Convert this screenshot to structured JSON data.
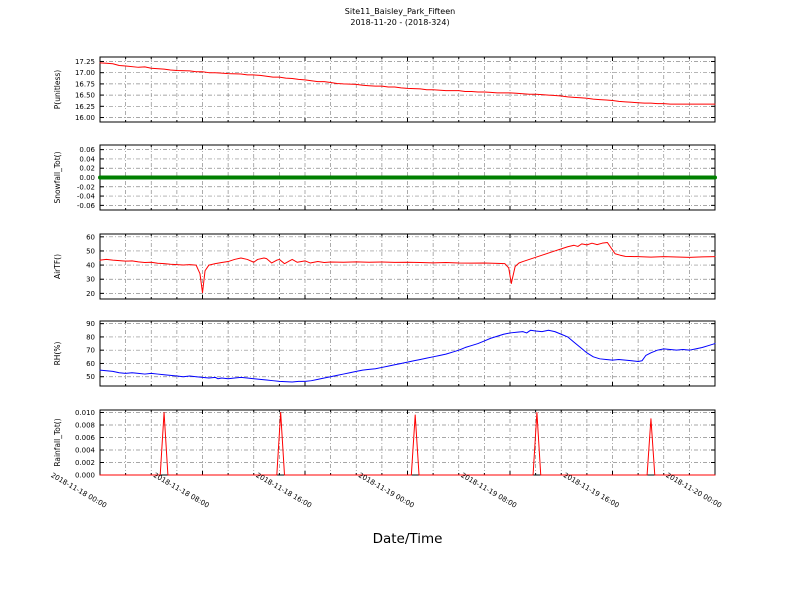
{
  "title": "Site11_Baisley_Park_Fifteen",
  "subtitle": "2018-11-20 - (2018-324)",
  "xlabel": "Date/Time",
  "background": "#ffffff",
  "grid": {
    "color": "#8a8a8a",
    "dash": "4 2 1 2",
    "width": 0.7
  },
  "x_axis": {
    "range_hours": [
      0,
      48
    ],
    "major_ticks_hours": [
      0,
      8,
      16,
      24,
      32,
      40,
      48
    ],
    "minor_step_hours": 2,
    "tick_labels": [
      "2018-11-18 00:00",
      "2018-11-18 08:00",
      "2018-11-18 16:00",
      "2018-11-19 00:00",
      "2018-11-19 08:00",
      "2018-11-19 16:00",
      "2018-11-20 00:00"
    ]
  },
  "chart_data": [
    {
      "id": "p-unitless",
      "type": "line",
      "ylabel": "P(unitless)",
      "color": "#ff0000",
      "linewidth": 1,
      "ylim": [
        15.9,
        17.35
      ],
      "yticks": [
        16.0,
        16.25,
        16.5,
        16.75,
        17.0,
        17.25
      ],
      "ytick_labels": [
        "16.00",
        "16.25",
        "16.50",
        "16.75",
        "17.00",
        "17.25"
      ],
      "points": [
        [
          0,
          17.22
        ],
        [
          0.5,
          17.21
        ],
        [
          1,
          17.2
        ],
        [
          1.5,
          17.16
        ],
        [
          2,
          17.15
        ],
        [
          3,
          17.12
        ],
        [
          3.5,
          17.13
        ],
        [
          4,
          17.1
        ],
        [
          5,
          17.08
        ],
        [
          5.5,
          17.06
        ],
        [
          6,
          17.05
        ],
        [
          7,
          17.04
        ],
        [
          7.5,
          17.02
        ],
        [
          8,
          17.02
        ],
        [
          8.5,
          17.0
        ],
        [
          9,
          17.0
        ],
        [
          9.5,
          16.99
        ],
        [
          10,
          16.98
        ],
        [
          11,
          16.97
        ],
        [
          11.5,
          16.95
        ],
        [
          12,
          16.95
        ],
        [
          12.5,
          16.94
        ],
        [
          13,
          16.92
        ],
        [
          13.5,
          16.9
        ],
        [
          14,
          16.9
        ],
        [
          14.5,
          16.88
        ],
        [
          15,
          16.87
        ],
        [
          15.5,
          16.85
        ],
        [
          16,
          16.84
        ],
        [
          16.5,
          16.82
        ],
        [
          17,
          16.8
        ],
        [
          17.5,
          16.8
        ],
        [
          18,
          16.78
        ],
        [
          18.5,
          16.76
        ],
        [
          19,
          16.75
        ],
        [
          20,
          16.74
        ],
        [
          20.5,
          16.72
        ],
        [
          21,
          16.71
        ],
        [
          21.5,
          16.7
        ],
        [
          22,
          16.7
        ],
        [
          22.5,
          16.68
        ],
        [
          23,
          16.68
        ],
        [
          23.5,
          16.66
        ],
        [
          24,
          16.65
        ],
        [
          25,
          16.64
        ],
        [
          25.5,
          16.62
        ],
        [
          26,
          16.62
        ],
        [
          27,
          16.6
        ],
        [
          28,
          16.6
        ],
        [
          28.5,
          16.58
        ],
        [
          29,
          16.58
        ],
        [
          29.5,
          16.57
        ],
        [
          30,
          16.57
        ],
        [
          30.5,
          16.56
        ],
        [
          31,
          16.55
        ],
        [
          32,
          16.55
        ],
        [
          32.5,
          16.54
        ],
        [
          33,
          16.53
        ],
        [
          33.5,
          16.52
        ],
        [
          34,
          16.52
        ],
        [
          34.5,
          16.51
        ],
        [
          35,
          16.5
        ],
        [
          35.5,
          16.49
        ],
        [
          36,
          16.48
        ],
        [
          36.5,
          16.46
        ],
        [
          37,
          16.45
        ],
        [
          37.5,
          16.44
        ],
        [
          38,
          16.43
        ],
        [
          38.5,
          16.41
        ],
        [
          39,
          16.4
        ],
        [
          39.5,
          16.39
        ],
        [
          40,
          16.38
        ],
        [
          40.5,
          16.36
        ],
        [
          41,
          16.35
        ],
        [
          41.5,
          16.34
        ],
        [
          42,
          16.33
        ],
        [
          42.5,
          16.32
        ],
        [
          43,
          16.32
        ],
        [
          43.5,
          16.31
        ],
        [
          44,
          16.31
        ],
        [
          44.5,
          16.3
        ],
        [
          45,
          16.3
        ],
        [
          46,
          16.3
        ],
        [
          47,
          16.3
        ],
        [
          48,
          16.3
        ]
      ]
    },
    {
      "id": "snowfall-tot",
      "type": "line",
      "ylabel": "Snowfall_Tot()",
      "color": "#008000",
      "linewidth": 4,
      "ylim": [
        -0.07,
        0.07
      ],
      "yticks": [
        -0.06,
        -0.04,
        -0.02,
        0.0,
        0.02,
        0.04,
        0.06
      ],
      "ytick_labels": [
        "-0.06",
        "-0.04",
        "-0.02",
        "0.00",
        "0.02",
        "0.04",
        "0.06"
      ],
      "points": [
        [
          0,
          0
        ],
        [
          48,
          0
        ]
      ]
    },
    {
      "id": "airtf",
      "type": "line",
      "ylabel": "AirTF()",
      "color": "#ff0000",
      "linewidth": 1,
      "ylim": [
        16,
        62
      ],
      "yticks": [
        20,
        30,
        40,
        50,
        60
      ],
      "ytick_labels": [
        "20",
        "30",
        "40",
        "50",
        "60"
      ],
      "points": [
        [
          0,
          43.5
        ],
        [
          0.5,
          44
        ],
        [
          1,
          43.5
        ],
        [
          1.5,
          43.2
        ],
        [
          2,
          42.8
        ],
        [
          2.5,
          43
        ],
        [
          3,
          42.3
        ],
        [
          3.5,
          41.8
        ],
        [
          4,
          42
        ],
        [
          4.5,
          41.3
        ],
        [
          5,
          41
        ],
        [
          5.5,
          40.6
        ],
        [
          6,
          40.3
        ],
        [
          6.5,
          40.1
        ],
        [
          7,
          40.3
        ],
        [
          7.5,
          40
        ],
        [
          7.8,
          34
        ],
        [
          8,
          20.5
        ],
        [
          8.2,
          36
        ],
        [
          8.5,
          40
        ],
        [
          9,
          41
        ],
        [
          9.5,
          41.8
        ],
        [
          10,
          42.5
        ],
        [
          10.5,
          44
        ],
        [
          11,
          45
        ],
        [
          11.5,
          44
        ],
        [
          12,
          42
        ],
        [
          12.3,
          44
        ],
        [
          12.8,
          45
        ],
        [
          13,
          44.6
        ],
        [
          13.4,
          41.5
        ],
        [
          13.8,
          43.5
        ],
        [
          14,
          44
        ],
        [
          14.4,
          41
        ],
        [
          14.8,
          43
        ],
        [
          15,
          44
        ],
        [
          15.4,
          42
        ],
        [
          16,
          43
        ],
        [
          16.4,
          41.5
        ],
        [
          17,
          42.5
        ],
        [
          17.5,
          41.8
        ],
        [
          18,
          42.2
        ],
        [
          19,
          42
        ],
        [
          20,
          42.3
        ],
        [
          21,
          42
        ],
        [
          22,
          42.2
        ],
        [
          23,
          41.9
        ],
        [
          24,
          42
        ],
        [
          25,
          41.8
        ],
        [
          26,
          41.6
        ],
        [
          27,
          41.8
        ],
        [
          28,
          41.5
        ],
        [
          29,
          41.4
        ],
        [
          30,
          41.5
        ],
        [
          31,
          41.2
        ],
        [
          31.6,
          41
        ],
        [
          31.9,
          38
        ],
        [
          32.1,
          27
        ],
        [
          32.4,
          39
        ],
        [
          32.7,
          41.5
        ],
        [
          33,
          42.5
        ],
        [
          33.5,
          44
        ],
        [
          34,
          45.5
        ],
        [
          34.5,
          47
        ],
        [
          35,
          48.5
        ],
        [
          35.5,
          50
        ],
        [
          36,
          51.5
        ],
        [
          36.5,
          53
        ],
        [
          37,
          54
        ],
        [
          37.3,
          53.2
        ],
        [
          37.6,
          55
        ],
        [
          38,
          54.3
        ],
        [
          38.4,
          55.5
        ],
        [
          38.8,
          54.5
        ],
        [
          39.2,
          55.5
        ],
        [
          39.6,
          56
        ],
        [
          39.9,
          52
        ],
        [
          40.2,
          48
        ],
        [
          40.6,
          47
        ],
        [
          41,
          46.2
        ],
        [
          42,
          46
        ],
        [
          43,
          45.6
        ],
        [
          44,
          46
        ],
        [
          45,
          45.7
        ],
        [
          46,
          45.5
        ],
        [
          47,
          45.8
        ],
        [
          48,
          46
        ]
      ]
    },
    {
      "id": "rh",
      "type": "line",
      "ylabel": "RH(%)",
      "color": "#0000ff",
      "linewidth": 1,
      "ylim": [
        43,
        92
      ],
      "yticks": [
        50,
        60,
        70,
        80,
        90
      ],
      "ytick_labels": [
        "50",
        "60",
        "70",
        "80",
        "90"
      ],
      "points": [
        [
          0,
          55
        ],
        [
          0.5,
          54.5
        ],
        [
          1,
          54
        ],
        [
          1.5,
          53
        ],
        [
          2,
          52.5
        ],
        [
          2.5,
          53
        ],
        [
          3,
          52.5
        ],
        [
          3.5,
          52
        ],
        [
          4,
          52.5
        ],
        [
          4.5,
          52
        ],
        [
          5,
          51.5
        ],
        [
          5.5,
          51
        ],
        [
          6,
          50.5
        ],
        [
          6.5,
          50
        ],
        [
          7,
          50.5
        ],
        [
          7.5,
          50
        ],
        [
          8,
          49.5
        ],
        [
          8.5,
          49
        ],
        [
          9,
          49.5
        ],
        [
          9.2,
          48.5
        ],
        [
          9.5,
          49
        ],
        [
          10,
          48.5
        ],
        [
          10.5,
          49
        ],
        [
          11,
          49.5
        ],
        [
          11.5,
          49
        ],
        [
          12,
          48.5
        ],
        [
          12.5,
          48
        ],
        [
          13,
          47.5
        ],
        [
          13.5,
          47
        ],
        [
          14,
          46.5
        ],
        [
          15,
          46
        ],
        [
          15.5,
          46.5
        ],
        [
          16,
          46.5
        ],
        [
          16.5,
          47
        ],
        [
          17,
          48
        ],
        [
          17.5,
          49
        ],
        [
          18,
          50
        ],
        [
          18.5,
          51
        ],
        [
          19,
          52
        ],
        [
          19.5,
          53
        ],
        [
          20,
          54
        ],
        [
          20.5,
          55
        ],
        [
          21,
          55.5
        ],
        [
          21.5,
          56
        ],
        [
          22,
          57
        ],
        [
          22.5,
          58
        ],
        [
          23,
          59
        ],
        [
          23.5,
          60
        ],
        [
          24,
          61
        ],
        [
          24.5,
          62
        ],
        [
          25,
          63
        ],
        [
          25.5,
          64
        ],
        [
          26,
          65
        ],
        [
          26.5,
          66
        ],
        [
          27,
          67
        ],
        [
          27.5,
          68.5
        ],
        [
          28,
          70
        ],
        [
          28.5,
          72
        ],
        [
          29,
          73.5
        ],
        [
          29.5,
          75
        ],
        [
          30,
          77
        ],
        [
          30.5,
          79
        ],
        [
          31,
          80.5
        ],
        [
          31.5,
          82
        ],
        [
          32,
          83
        ],
        [
          32.5,
          83.5
        ],
        [
          33,
          84
        ],
        [
          33.3,
          83
        ],
        [
          33.6,
          85
        ],
        [
          34,
          84.5
        ],
        [
          34.5,
          84
        ],
        [
          35,
          85
        ],
        [
          35.5,
          84
        ],
        [
          36,
          82
        ],
        [
          36.5,
          80
        ],
        [
          37,
          76
        ],
        [
          37.5,
          72
        ],
        [
          38,
          68
        ],
        [
          38.5,
          65
        ],
        [
          39,
          63.5
        ],
        [
          39.5,
          63
        ],
        [
          40,
          62.5
        ],
        [
          40.5,
          63
        ],
        [
          41,
          62.5
        ],
        [
          41.5,
          62
        ],
        [
          42,
          61.5
        ],
        [
          42.3,
          62
        ],
        [
          42.6,
          66
        ],
        [
          43,
          68
        ],
        [
          43.5,
          70
        ],
        [
          44,
          71
        ],
        [
          44.5,
          70.5
        ],
        [
          45,
          70
        ],
        [
          45.5,
          70.5
        ],
        [
          46,
          70
        ],
        [
          46.5,
          71
        ],
        [
          47,
          72
        ],
        [
          47.5,
          73.5
        ],
        [
          48,
          75
        ]
      ]
    },
    {
      "id": "rainfall-tot",
      "type": "line",
      "ylabel": "Rainfall_Tot()",
      "color": "#ff0000",
      "linewidth": 1,
      "ylim": [
        0,
        0.0104
      ],
      "yticks": [
        0.0,
        0.002,
        0.004,
        0.006,
        0.008,
        0.01
      ],
      "ytick_labels": [
        "0.000",
        "0.002",
        "0.004",
        "0.006",
        "0.008",
        "0.010"
      ],
      "points": [
        [
          0,
          0
        ],
        [
          4.7,
          0
        ],
        [
          5.0,
          0.01
        ],
        [
          5.3,
          0
        ],
        [
          13.8,
          0
        ],
        [
          14.1,
          0.01
        ],
        [
          14.4,
          0
        ],
        [
          24.3,
          0
        ],
        [
          24.6,
          0.0096
        ],
        [
          24.9,
          0
        ],
        [
          33.8,
          0
        ],
        [
          34.1,
          0.01
        ],
        [
          34.4,
          0
        ],
        [
          42.7,
          0
        ],
        [
          43.0,
          0.009
        ],
        [
          43.3,
          0
        ],
        [
          48,
          0
        ]
      ]
    }
  ]
}
